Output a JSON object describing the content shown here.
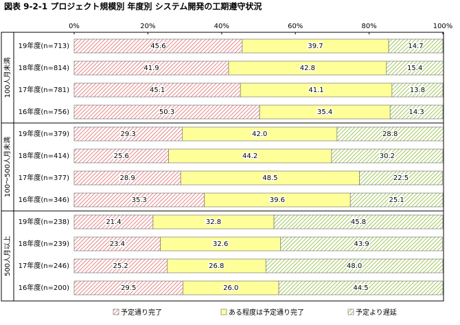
{
  "chart_data": {
    "type": "stacked_bar_horizontal",
    "title": "図表 9-2-1 プロジェクト規模別 年度別 システム開発の工期遵守状況",
    "group_labels": [
      "100人月未満",
      "100～500人月未満",
      "500人月以上"
    ],
    "categories": [
      "19年度(n=713)",
      "18年度(n=814)",
      "17年度(n=781)",
      "16年度(n=756)",
      "19年度(n=379)",
      "18年度(n=414)",
      "17年度(n=377)",
      "16年度(n=346)",
      "19年度(n=238)",
      "18年度(n=239)",
      "17年度(n=246)",
      "16年度(n=200)"
    ],
    "series": [
      {
        "name": "予定通り完了",
        "color": "#e06666",
        "hatch": true,
        "values": [
          45.6,
          41.9,
          45.1,
          50.3,
          29.3,
          25.6,
          28.9,
          35.3,
          21.4,
          23.4,
          25.2,
          29.5
        ],
        "value_labels": [
          "45.6",
          "41.9",
          "45.1",
          "50.3",
          "29.3",
          "25.6",
          "28.9",
          "35.3",
          "21.4",
          "23.4",
          "25.2",
          "29.5"
        ]
      },
      {
        "name": "ある程度は予定通り完了",
        "color": "#ffff99",
        "hatch": false,
        "values": [
          39.7,
          42.8,
          41.1,
          35.4,
          42.0,
          44.2,
          48.5,
          39.6,
          32.8,
          32.6,
          26.8,
          26.0
        ],
        "value_labels": [
          "39.7",
          "42.8",
          "41.1",
          "35.4",
          "42.0",
          "44.2",
          "48.5",
          "39.6",
          "32.8",
          "32.6",
          "26.8",
          "26.0"
        ]
      },
      {
        "name": "予定より遅延",
        "color": "#88b82e",
        "hatch": true,
        "values": [
          14.7,
          15.4,
          13.8,
          14.3,
          28.8,
          30.2,
          22.5,
          25.1,
          45.8,
          43.9,
          48.0,
          44.5
        ],
        "value_labels": [
          "14.7",
          "15.4",
          "13.8",
          "14.3",
          "28.8",
          "30.2",
          "22.5",
          "25.1",
          "45.8",
          "43.9",
          "48.0",
          "44.5"
        ]
      }
    ],
    "xlim": [
      0,
      100
    ],
    "xticks": [
      {
        "value": 0,
        "label": "0%"
      },
      {
        "value": 20,
        "label": "20%"
      },
      {
        "value": 40,
        "label": "40%"
      },
      {
        "value": 60,
        "label": "60%"
      },
      {
        "value": 80,
        "label": "80%"
      },
      {
        "value": 100,
        "label": "100%"
      }
    ]
  }
}
